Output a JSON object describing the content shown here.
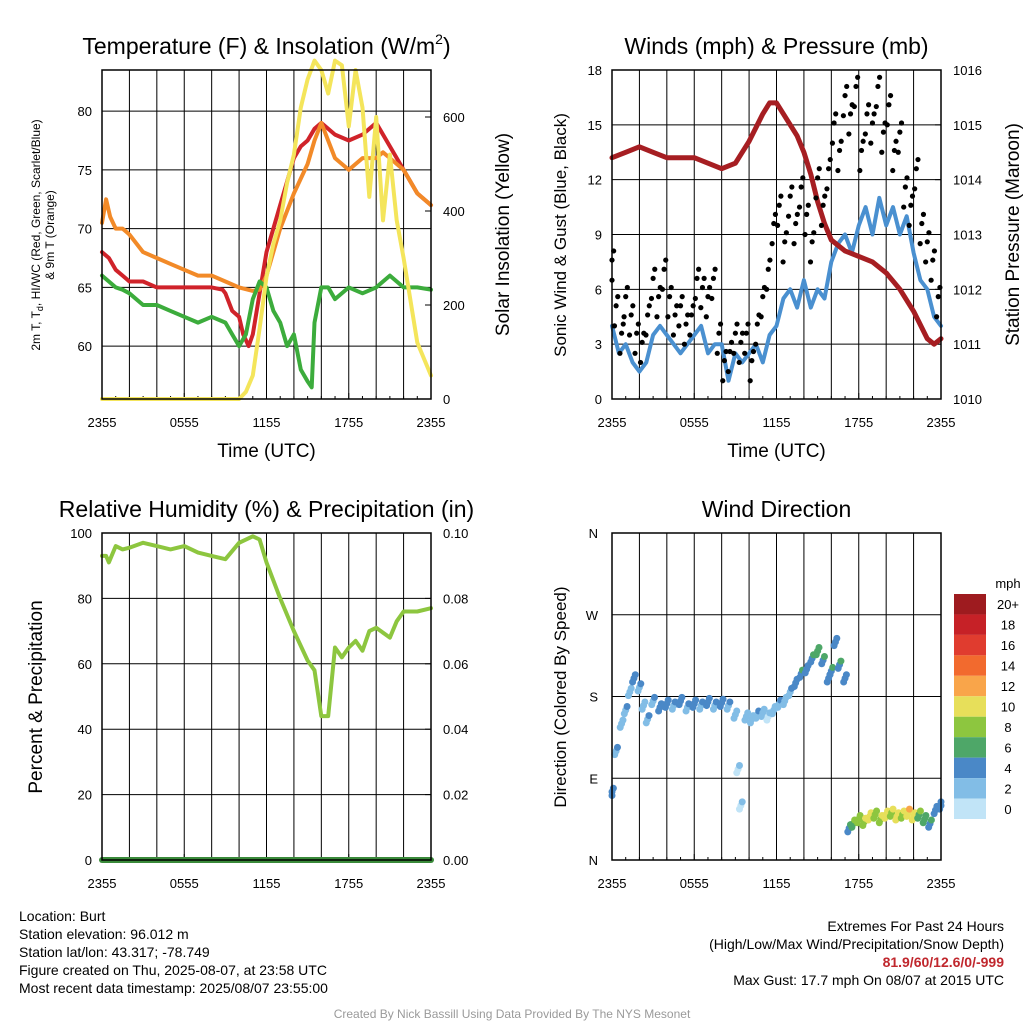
{
  "chart_data": [
    {
      "type": "line",
      "title": "Temperature (F) & Insolation (W/m²)",
      "xlabel": "Time (UTC)",
      "ylabel_left": "2m T, Td, HI/WC (Red, Green, Scarlet/Blue) & 9m T (Orange)",
      "ylabel_right": "Solar Insolation (Yellow)",
      "x_ticks": [
        "2355",
        "0555",
        "1155",
        "1755",
        "2355"
      ],
      "x_range_hours": [
        0,
        24
      ],
      "y_left_ticks": [
        60,
        65,
        70,
        75,
        80
      ],
      "y_left_range": [
        55.5,
        83.5
      ],
      "y_right_ticks": [
        0,
        200,
        400,
        600
      ],
      "y_right_range": [
        0,
        700
      ],
      "series": [
        {
          "key": "t2m",
          "color": "#d0232a",
          "axis": "left",
          "x": [
            0,
            0.5,
            1,
            1.5,
            2,
            3,
            4,
            5,
            6,
            7,
            8,
            8.8,
            9,
            9.5,
            10,
            10.3,
            10.7,
            11,
            11.5,
            12,
            13,
            13.5,
            14,
            14.5,
            15,
            15.5,
            16,
            17,
            18,
            19,
            20,
            21,
            22,
            23,
            24
          ],
          "y": [
            68,
            67.5,
            66.5,
            66,
            65.5,
            65.5,
            65,
            65,
            65,
            65,
            65,
            64.8,
            64.5,
            63,
            62.5,
            61,
            60,
            61,
            64.5,
            68,
            72,
            74,
            76,
            77,
            77.5,
            78.5,
            79,
            78,
            77.5,
            78,
            79,
            77,
            75,
            73,
            72
          ]
        },
        {
          "key": "t9m",
          "color": "#f28a28",
          "axis": "left",
          "x": [
            0,
            0.3,
            0.6,
            1,
            1.5,
            2,
            3,
            4,
            5,
            6,
            7,
            8,
            9,
            10,
            11,
            11.5,
            12,
            13,
            14,
            15,
            15.5,
            16,
            17,
            18,
            19,
            20,
            20.5,
            21,
            22,
            23,
            24
          ],
          "y": [
            70.5,
            72.5,
            71,
            70,
            70,
            69.5,
            68,
            67.5,
            67,
            66.5,
            66,
            66,
            65.5,
            65,
            64.7,
            64.8,
            66,
            70,
            73,
            75.5,
            77.5,
            79,
            76,
            75,
            76,
            76,
            76.5,
            76,
            75,
            73,
            72
          ]
        },
        {
          "key": "td",
          "color": "#3cac3c",
          "axis": "left",
          "x": [
            0,
            0.5,
            1,
            1.5,
            2,
            3,
            4,
            5,
            6,
            7,
            8,
            9,
            9.5,
            10,
            10.5,
            11,
            11.5,
            12,
            12.5,
            13,
            13.5,
            14,
            14.5,
            15,
            15.3,
            15.5,
            16,
            16.5,
            17,
            18,
            19,
            20,
            21,
            22,
            23,
            24
          ],
          "y": [
            66,
            65.5,
            65,
            64.8,
            64.5,
            63.5,
            63.5,
            63,
            62.5,
            62,
            62.5,
            62,
            61,
            60,
            61,
            64,
            65.5,
            65,
            63,
            62,
            60,
            61,
            58,
            57,
            56.5,
            62,
            65,
            65,
            64,
            65,
            64.5,
            65,
            66,
            65,
            65,
            64.8
          ]
        },
        {
          "key": "solar",
          "color": "#f4e55b",
          "axis": "right",
          "x": [
            0,
            1,
            2,
            3,
            4,
            5,
            6,
            7,
            8,
            9,
            10,
            10.5,
            11,
            11.5,
            12,
            12.5,
            13,
            13.5,
            14,
            14.5,
            15,
            15.5,
            16,
            16.5,
            17,
            17.5,
            18,
            18.5,
            19,
            19.5,
            20,
            20.5,
            21,
            21.5,
            22,
            23,
            24
          ],
          "y": [
            0,
            0,
            0,
            0,
            0,
            0,
            0,
            0,
            0,
            0,
            0,
            15,
            50,
            150,
            260,
            330,
            380,
            460,
            520,
            620,
            680,
            720,
            700,
            650,
            720,
            710,
            580,
            700,
            620,
            430,
            600,
            380,
            520,
            380,
            300,
            120,
            50
          ]
        }
      ]
    },
    {
      "type": "line",
      "title": "Winds (mph) & Pressure (mb)",
      "xlabel": "Time (UTC)",
      "ylabel_left": "Sonic Wind & Gust (Blue, Black)",
      "ylabel_right": "Station Pressure (Maroon)",
      "x_ticks": [
        "2355",
        "0555",
        "1155",
        "1755",
        "2355"
      ],
      "x_range_hours": [
        0,
        24
      ],
      "y_left_ticks": [
        0,
        3,
        6,
        9,
        12,
        15,
        18
      ],
      "y_left_range": [
        0,
        18
      ],
      "y_right_ticks": [
        1010,
        1011,
        1012,
        1013,
        1014,
        1015,
        1016
      ],
      "y_right_range": [
        1010,
        1016
      ],
      "series": [
        {
          "key": "wind",
          "color": "#4a90d0",
          "axis": "left",
          "x": [
            0,
            0.5,
            1,
            1.5,
            2,
            2.5,
            3,
            3.5,
            4,
            4.5,
            5,
            5.5,
            6,
            6.5,
            7,
            7.5,
            8,
            8.5,
            9,
            9.5,
            10,
            10.5,
            11,
            11.5,
            12,
            12.5,
            13,
            13.5,
            14,
            14.5,
            15,
            15.5,
            16,
            16.5,
            17,
            17.5,
            18,
            18.5,
            19,
            19.5,
            20,
            20.5,
            21,
            21.5,
            22,
            22.5,
            23,
            23.5,
            24
          ],
          "y": [
            4,
            2.5,
            3,
            2,
            1.5,
            2,
            3.5,
            4,
            3.5,
            3,
            2.5,
            3,
            3.5,
            4,
            2.5,
            3,
            3,
            1,
            2.5,
            2,
            2.5,
            3,
            2,
            3.5,
            4,
            5.5,
            6,
            5,
            6.5,
            5,
            6,
            5.5,
            7.5,
            8.5,
            9,
            8,
            9.5,
            10.5,
            9,
            11,
            9.5,
            10.5,
            9,
            10,
            8,
            6.5,
            6,
            4.5,
            4
          ]
        },
        {
          "key": "pressure",
          "color": "#a61e22",
          "axis": "right",
          "x": [
            0,
            1,
            2,
            3,
            4,
            5,
            6,
            7,
            8,
            9,
            10,
            11,
            11.5,
            12,
            12.5,
            13,
            13.5,
            14,
            14.5,
            15,
            15.5,
            16,
            17,
            18,
            19,
            20,
            21,
            22,
            23,
            23.5,
            24
          ],
          "y": [
            1014.4,
            1014.5,
            1014.6,
            1014.5,
            1014.4,
            1014.4,
            1014.4,
            1014.3,
            1014.2,
            1014.3,
            1014.7,
            1015.2,
            1015.4,
            1015.4,
            1015.2,
            1015,
            1014.8,
            1014.5,
            1014.1,
            1013.6,
            1013.2,
            1012.9,
            1012.7,
            1012.6,
            1012.5,
            1012.3,
            1012,
            1011.6,
            1011.1,
            1011,
            1011.1
          ]
        },
        {
          "key": "gust",
          "color": "#000000",
          "axis": "left",
          "style": "dots",
          "x": [
            0,
            0.3,
            0.7,
            1,
            1.4,
            1.8,
            2.2,
            2.6,
            3,
            3.4,
            3.8,
            4.2,
            4.6,
            5,
            5.4,
            5.8,
            6.2,
            6.6,
            7,
            7.4,
            7.8,
            8.2,
            8.6,
            9,
            9.4,
            9.8,
            10.2,
            10.6,
            11,
            11.4,
            11.8,
            12.2,
            12.6,
            13,
            13.4,
            13.8,
            14.2,
            14.6,
            15,
            15.4,
            15.8,
            16.2,
            16.6,
            17,
            17.4,
            17.8,
            18.2,
            18.6,
            19,
            19.4,
            19.8,
            20.2,
            20.6,
            21,
            21.4,
            21.8,
            22.2,
            22.6,
            23,
            23.4,
            23.8
          ],
          "y": [
            7,
            4.5,
            3,
            5,
            4,
            3,
            2.5,
            4,
            6,
            5,
            6.5,
            5,
            4,
            4.5,
            3.5,
            4,
            6,
            5.5,
            5,
            6,
            3,
            1.5,
            2,
            3,
            2.5,
            3,
            1.5,
            3.5,
            5,
            6.5,
            9,
            10,
            8,
            10.5,
            9,
            11,
            9.5,
            8,
            11.5,
            10,
            12,
            14.5,
            13,
            16,
            15,
            16.5,
            13,
            15,
            14.5,
            16.5,
            14,
            15.5,
            13,
            14,
            11,
            10,
            12,
            9,
            8,
            7,
            5
          ]
        }
      ]
    },
    {
      "type": "line",
      "title": "Relative Humidity (%) & Precipitation (in)",
      "xlabel": "",
      "ylabel_left": "Percent & Precipitation",
      "x_ticks": [
        "2355",
        "0555",
        "1155",
        "1755",
        "2355"
      ],
      "x_range_hours": [
        0,
        24
      ],
      "y_left_ticks": [
        0,
        20,
        40,
        60,
        80,
        100
      ],
      "y_left_range": [
        0,
        100
      ],
      "y_right_ticks": [
        "0.00",
        "0.02",
        "0.04",
        "0.06",
        "0.08",
        "0.10"
      ],
      "y_right_range": [
        0,
        0.1
      ],
      "series": [
        {
          "key": "rh",
          "color": "#8dc63f",
          "axis": "left",
          "x": [
            0,
            0.3,
            0.5,
            1,
            1.5,
            2,
            3,
            4,
            5,
            6,
            7,
            8,
            9,
            10,
            11,
            11.5,
            12,
            13,
            14,
            15,
            15.5,
            16,
            16.5,
            17,
            17.5,
            18,
            18.5,
            19,
            19.5,
            20,
            21,
            21.5,
            22,
            23,
            24
          ],
          "y": [
            93,
            93,
            91,
            96,
            95,
            95.5,
            97,
            96,
            95,
            96,
            94,
            93,
            92,
            97,
            99,
            98,
            91,
            80,
            70,
            61,
            58,
            44,
            44,
            65,
            62,
            65,
            67,
            64,
            70,
            71,
            68,
            73,
            76,
            76,
            77
          ]
        },
        {
          "key": "precip",
          "color": "#3a8a3a",
          "axis": "right",
          "x": [
            0,
            24
          ],
          "y": [
            0,
            0
          ]
        }
      ]
    },
    {
      "type": "scatter",
      "title": "Wind Direction",
      "ylabel_left": "Direction (Colored By Speed)",
      "x_ticks": [
        "2355",
        "0555",
        "1155",
        "1755",
        "2355"
      ],
      "x_range_hours": [
        0,
        24
      ],
      "y_ticks": [
        "N",
        "E",
        "S",
        "W",
        "N"
      ],
      "y_range_deg": [
        0,
        360
      ],
      "colorbar": {
        "title": "mph",
        "labels": [
          "20+",
          "18",
          "16",
          "14",
          "12",
          "10",
          "8",
          "6",
          "4",
          "2",
          "0"
        ],
        "colors": [
          "#9e1b1f",
          "#c62127",
          "#e03c2f",
          "#f26a2e",
          "#f9a54a",
          "#e7df5a",
          "#8dc63f",
          "#4ea768",
          "#4a88c7",
          "#82bde6",
          "#c1e4f7"
        ]
      },
      "points": [
        [
          0,
          75,
          3
        ],
        [
          0.3,
          120,
          2
        ],
        [
          0.7,
          150,
          1
        ],
        [
          1,
          165,
          2
        ],
        [
          1.3,
          185,
          1
        ],
        [
          1.6,
          200,
          3
        ],
        [
          2,
          190,
          2
        ],
        [
          2.3,
          170,
          1
        ],
        [
          2.6,
          155,
          2
        ],
        [
          3,
          175,
          2
        ],
        [
          3.5,
          168,
          3
        ],
        [
          4,
          172,
          3
        ],
        [
          4.5,
          170,
          2
        ],
        [
          5,
          175,
          3
        ],
        [
          5.5,
          168,
          2
        ],
        [
          6,
          172,
          3
        ],
        [
          6.5,
          170,
          2
        ],
        [
          7,
          174,
          3
        ],
        [
          7.5,
          170,
          2
        ],
        [
          8,
          173,
          3
        ],
        [
          8.5,
          170,
          2
        ],
        [
          9,
          160,
          1
        ],
        [
          9.2,
          100,
          0
        ],
        [
          9.4,
          60,
          0
        ],
        [
          9.8,
          158,
          1
        ],
        [
          10.2,
          155,
          1
        ],
        [
          10.6,
          160,
          2
        ],
        [
          11,
          162,
          1
        ],
        [
          11.4,
          158,
          0
        ],
        [
          11.8,
          165,
          1
        ],
        [
          12.2,
          172,
          2
        ],
        [
          12.6,
          175,
          1
        ],
        [
          13,
          185,
          2
        ],
        [
          13.4,
          195,
          3
        ],
        [
          13.8,
          205,
          4
        ],
        [
          14.2,
          210,
          3
        ],
        [
          14.6,
          222,
          4
        ],
        [
          15,
          230,
          5
        ],
        [
          15.4,
          220,
          4
        ],
        [
          15.8,
          200,
          3
        ],
        [
          16,
          208,
          4
        ],
        [
          16.3,
          240,
          3
        ],
        [
          16.6,
          215,
          4
        ],
        [
          17,
          200,
          3
        ],
        [
          17.3,
          35,
          4
        ],
        [
          17.6,
          40,
          6
        ],
        [
          18,
          45,
          7
        ],
        [
          18.4,
          42,
          8
        ],
        [
          18.8,
          48,
          9
        ],
        [
          19.2,
          50,
          7
        ],
        [
          19.6,
          45,
          8
        ],
        [
          20,
          50,
          9
        ],
        [
          20.4,
          52,
          8
        ],
        [
          20.8,
          48,
          9
        ],
        [
          21.2,
          50,
          8
        ],
        [
          21.6,
          52,
          10
        ],
        [
          22,
          48,
          9
        ],
        [
          22.4,
          50,
          6
        ],
        [
          22.8,
          45,
          5
        ],
        [
          23.2,
          40,
          4
        ],
        [
          23.6,
          55,
          3
        ],
        [
          24,
          60,
          3
        ]
      ]
    }
  ],
  "footer": {
    "location": "Location: Burt",
    "elevation": "Station elevation: 96.012 m",
    "latlon": "Station lat/lon: 43.317; -78.749",
    "created": "Figure created on Thu, 2025-08-07, at 23:58 UTC",
    "recent": "Most recent data timestamp: 2025/08/07 23:55:00",
    "extremes_title": "Extremes For Past 24 Hours",
    "extremes_legend": "(High/Low/Max Wind/Precipitation/Snow Depth)",
    "extremes_values": "81.9/60/12.6/0/-999",
    "max_gust": "Max Gust: 17.7 mph On 08/07 at 2015 UTC",
    "credit": "Created By Nick Bassill Using Data Provided By The NYS Mesonet"
  }
}
